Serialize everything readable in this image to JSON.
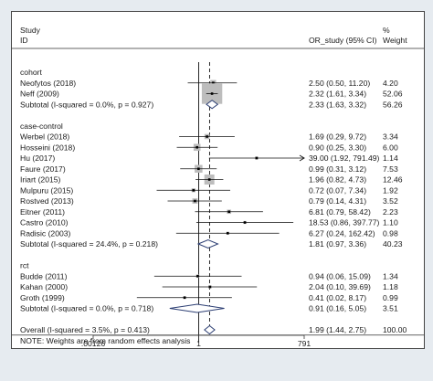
{
  "chart_data": {
    "type": "forest",
    "header": {
      "study_line1": "Study",
      "study_line2": "ID",
      "effect_label": "OR_study (95% CI)",
      "weight_line1": "%",
      "weight_line2": "Weight"
    },
    "x_scale": "log",
    "xlim": [
      0.00126,
      791
    ],
    "null_line": 1,
    "pooled_line": 1.99,
    "xticks": [
      {
        "value": 0.00126,
        "label": ".00126"
      },
      {
        "value": 1,
        "label": "1"
      },
      {
        "value": 791,
        "label": "791"
      }
    ],
    "rows": [
      {
        "kind": "group",
        "label": "cohort"
      },
      {
        "kind": "study",
        "label": "Neofytos (2018)",
        "or": 2.5,
        "lo": 0.5,
        "hi": 11.2,
        "ci_text": "2.50 (0.50, 11.20)",
        "weight": "4.20",
        "w": 4.2
      },
      {
        "kind": "study",
        "label": "Neff (2009)",
        "or": 2.32,
        "lo": 1.61,
        "hi": 3.34,
        "ci_text": "2.32 (1.61, 3.34)",
        "weight": "52.06",
        "w": 52.06
      },
      {
        "kind": "subtotal",
        "label": "Subtotal  (I-squared = 0.0%, p = 0.927)",
        "or": 2.33,
        "lo": 1.63,
        "hi": 3.32,
        "ci_text": "2.33 (1.63, 3.32)",
        "weight": "56.26"
      },
      {
        "kind": "blank"
      },
      {
        "kind": "group",
        "label": "case-control"
      },
      {
        "kind": "study",
        "label": "Werbel (2018)",
        "or": 1.69,
        "lo": 0.29,
        "hi": 9.72,
        "ci_text": "1.69 (0.29, 9.72)",
        "weight": "3.34",
        "w": 3.34
      },
      {
        "kind": "study",
        "label": "Hosseini (2018)",
        "or": 0.9,
        "lo": 0.25,
        "hi": 3.3,
        "ci_text": "0.90 (0.25, 3.30)",
        "weight": "6.00",
        "w": 6.0
      },
      {
        "kind": "study",
        "label": "Hu (2017)",
        "or": 39.0,
        "lo": 1.92,
        "hi": 791.49,
        "ci_text": "39.00 (1.92, 791.49)",
        "weight": "1.14",
        "w": 1.14,
        "arrow_right": true
      },
      {
        "kind": "study",
        "label": "Faure (2017)",
        "or": 0.99,
        "lo": 0.31,
        "hi": 3.12,
        "ci_text": "0.99 (0.31, 3.12)",
        "weight": "7.53",
        "w": 7.53
      },
      {
        "kind": "study",
        "label": "Iriart (2015)",
        "or": 1.96,
        "lo": 0.82,
        "hi": 4.73,
        "ci_text": "1.96 (0.82, 4.73)",
        "weight": "12.46",
        "w": 12.46
      },
      {
        "kind": "study",
        "label": "Mulpuru (2015)",
        "or": 0.72,
        "lo": 0.07,
        "hi": 7.34,
        "ci_text": "0.72 (0.07, 7.34)",
        "weight": "1.92",
        "w": 1.92
      },
      {
        "kind": "study",
        "label": "Rostved (2013)",
        "or": 0.79,
        "lo": 0.14,
        "hi": 4.31,
        "ci_text": "0.79 (0.14, 4.31)",
        "weight": "3.52",
        "w": 3.52
      },
      {
        "kind": "study",
        "label": "Eitner (2011)",
        "or": 6.81,
        "lo": 0.79,
        "hi": 58.42,
        "ci_text": "6.81 (0.79, 58.42)",
        "weight": "2.23",
        "w": 2.23
      },
      {
        "kind": "study",
        "label": "Castro (2010)",
        "or": 18.53,
        "lo": 0.86,
        "hi": 397.77,
        "ci_text": "18.53 (0.86, 397.77)",
        "weight": "1.10",
        "w": 1.1
      },
      {
        "kind": "study",
        "label": "Radisic (2003)",
        "or": 6.27,
        "lo": 0.24,
        "hi": 162.42,
        "ci_text": "6.27 (0.24, 162.42)",
        "weight": "0.98",
        "w": 0.98
      },
      {
        "kind": "subtotal",
        "label": "Subtotal  (I-squared = 24.4%, p = 0.218)",
        "or": 1.81,
        "lo": 0.97,
        "hi": 3.36,
        "ci_text": "1.81 (0.97, 3.36)",
        "weight": "40.23"
      },
      {
        "kind": "blank"
      },
      {
        "kind": "group",
        "label": "rct"
      },
      {
        "kind": "study",
        "label": "Budde (2011)",
        "or": 0.94,
        "lo": 0.06,
        "hi": 15.09,
        "ci_text": "0.94 (0.06, 15.09)",
        "weight": "1.34",
        "w": 1.34
      },
      {
        "kind": "study",
        "label": "Kahan (2000)",
        "or": 2.04,
        "lo": 0.1,
        "hi": 39.69,
        "ci_text": "2.04 (0.10, 39.69)",
        "weight": "1.18",
        "w": 1.18
      },
      {
        "kind": "study",
        "label": "Groth (1999)",
        "or": 0.41,
        "lo": 0.02,
        "hi": 8.17,
        "ci_text": "0.41 (0.02, 8.17)",
        "weight": "0.99",
        "w": 0.99
      },
      {
        "kind": "subtotal",
        "label": "Subtotal  (I-squared = 0.0%, p = 0.718)",
        "or": 0.91,
        "lo": 0.16,
        "hi": 5.05,
        "ci_text": "0.91 (0.16, 5.05)",
        "weight": "3.51"
      },
      {
        "kind": "blank"
      },
      {
        "kind": "overall",
        "label": "Overall  (I-squared = 3.5%, p = 0.413)",
        "or": 1.99,
        "lo": 1.44,
        "hi": 2.75,
        "ci_text": "1.99 (1.44, 2.75)",
        "weight": "100.00"
      }
    ],
    "note": "NOTE: Weights are from random effects analysis",
    "colors": {
      "weight_box": "#bdbdbd",
      "diamond_stroke": "#2c3e73",
      "line": "#111111",
      "background": "#e6ebf0"
    }
  }
}
